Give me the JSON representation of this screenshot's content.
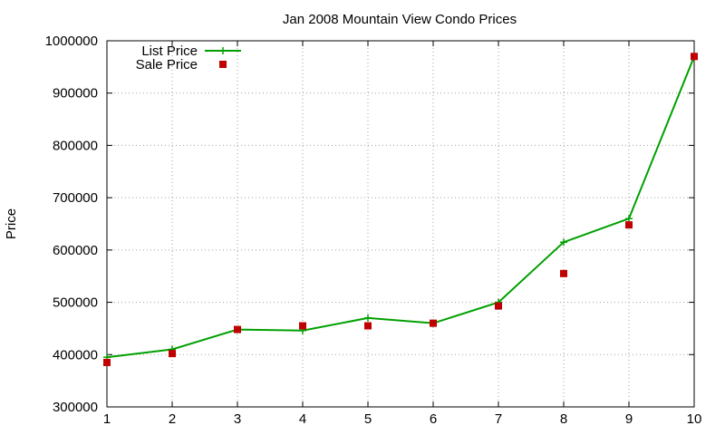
{
  "chart_data": {
    "type": "line",
    "title": "Jan 2008 Mountain View Condo Prices",
    "xlabel": "",
    "ylabel": "Price",
    "x": [
      1,
      2,
      3,
      4,
      5,
      6,
      7,
      8,
      9,
      10
    ],
    "xlim": [
      1,
      10
    ],
    "ylim": [
      300000,
      1000000
    ],
    "xticks": [
      "1",
      "2",
      "3",
      "4",
      "5",
      "6",
      "7",
      "8",
      "9",
      "10"
    ],
    "yticks": [
      "300000",
      "400000",
      "500000",
      "600000",
      "700000",
      "800000",
      "900000",
      "1000000"
    ],
    "grid": true,
    "legend_position": "top-left",
    "series": [
      {
        "name": "List Price",
        "style": "line-with-plus-markers",
        "color": "#00a000",
        "values": [
          395000,
          410000,
          448000,
          446000,
          470000,
          460000,
          500000,
          615000,
          660000,
          970000
        ]
      },
      {
        "name": "Sale Price",
        "style": "square-markers",
        "color": "#c00000",
        "values": [
          385000,
          402000,
          448000,
          455000,
          455000,
          460000,
          493000,
          555000,
          648000,
          970000
        ]
      }
    ]
  }
}
